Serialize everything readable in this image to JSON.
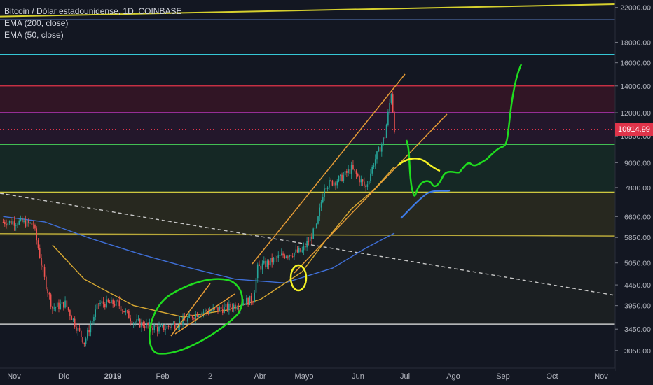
{
  "legend": {
    "symbol": "Bitcoin / Dólar estadounidense, 1D, COINBASE",
    "ema200": "EMA (200, close)",
    "ema50": "EMA (50, close)"
  },
  "colors": {
    "background": "#131722",
    "axis_text": "#b2b5be",
    "price_tag": "#e0344a",
    "candle_up": "#26a69a",
    "candle_down": "#ef5350",
    "ema200": "#3f6fd8",
    "ema50": "#d9a932",
    "hand_green": "#1fdc1f",
    "hand_yellow": "#f5f224",
    "channel": "#e59b36"
  },
  "chart_data": {
    "type": "candlestick",
    "title": "Bitcoin / Dólar estadounidense, 1D, COINBASE",
    "y_scale": "log",
    "ylim": [
      2800,
      22600
    ],
    "y_ticks": [
      "22000.00",
      "18000.00",
      "16000.00",
      "14000.00",
      "12000.00",
      "10500.00",
      "9000.00",
      "7800.00",
      "6600.00",
      "5850.00",
      "5050.00",
      "4450.00",
      "3950.00",
      "3450.00",
      "3050.00"
    ],
    "x_ticks": [
      "Nov",
      "Dic",
      "2019",
      "Feb",
      "2",
      "Abr",
      "Mayo",
      "Jun",
      "Jul",
      "Ago",
      "Sep",
      "Oct",
      "Nov"
    ],
    "last_price": "10914.99",
    "horizontal_levels": [
      {
        "price": 20500,
        "color": "#6f9cf0"
      },
      {
        "price": 16800,
        "color": "#35c7d6"
      },
      {
        "price": 14000,
        "color": "#e0344a"
      },
      {
        "price": 12000,
        "color": "#d33fd9"
      },
      {
        "price": 10000,
        "color": "#49d35a"
      },
      {
        "price": 7600,
        "color": "#e6de44"
      },
      {
        "price": 3550,
        "color": "#e8e8e8"
      }
    ],
    "price_series": [
      [
        "2018-10-25",
        6400
      ],
      [
        "2018-11-05",
        6400
      ],
      [
        "2018-11-13",
        6300
      ],
      [
        "2018-11-20",
        4600
      ],
      [
        "2018-11-25",
        3900
      ],
      [
        "2018-12-03",
        4000
      ],
      [
        "2018-12-10",
        3500
      ],
      [
        "2018-12-15",
        3200
      ],
      [
        "2018-12-24",
        4000
      ],
      [
        "2019-01-05",
        4000
      ],
      [
        "2019-01-15",
        3600
      ],
      [
        "2019-02-01",
        3450
      ],
      [
        "2019-02-15",
        3600
      ],
      [
        "2019-02-25",
        3800
      ],
      [
        "2019-03-15",
        3900
      ],
      [
        "2019-03-31",
        4100
      ],
      [
        "2019-04-03",
        4900
      ],
      [
        "2019-04-20",
        5300
      ],
      [
        "2019-05-01",
        5400
      ],
      [
        "2019-05-10",
        6200
      ],
      [
        "2019-05-15",
        7900
      ],
      [
        "2019-05-25",
        8200
      ],
      [
        "2019-06-01",
        8700
      ],
      [
        "2019-06-10",
        7800
      ],
      [
        "2019-06-15",
        9000
      ],
      [
        "2019-06-22",
        10500
      ],
      [
        "2019-06-26",
        13500
      ],
      [
        "2019-06-28",
        11000
      ]
    ],
    "ema50_series": [
      [
        "2018-11-25",
        5600
      ],
      [
        "2018-12-15",
        4600
      ],
      [
        "2019-01-15",
        3950
      ],
      [
        "2019-02-15",
        3700
      ],
      [
        "2019-03-15",
        3850
      ],
      [
        "2019-04-05",
        4100
      ],
      [
        "2019-05-01",
        4800
      ],
      [
        "2019-05-15",
        5700
      ],
      [
        "2019-06-01",
        6900
      ],
      [
        "2019-06-15",
        7700
      ],
      [
        "2019-06-28",
        8800
      ]
    ],
    "ema200_series": [
      [
        "2018-10-25",
        6600
      ],
      [
        "2018-11-20",
        6400
      ],
      [
        "2018-12-20",
        5800
      ],
      [
        "2019-01-20",
        5300
      ],
      [
        "2019-02-20",
        4900
      ],
      [
        "2019-03-20",
        4600
      ],
      [
        "2019-04-20",
        4500
      ],
      [
        "2019-05-20",
        4900
      ],
      [
        "2019-06-10",
        5500
      ],
      [
        "2019-06-28",
        6000
      ]
    ]
  }
}
